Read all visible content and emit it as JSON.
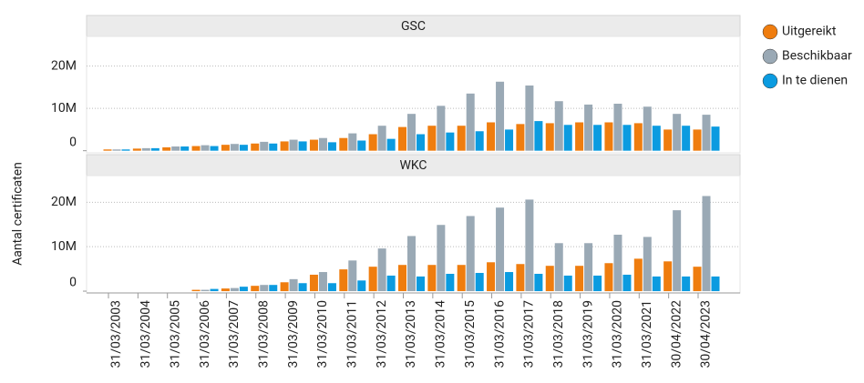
{
  "chart_data": {
    "type": "bar",
    "y_label": "Aantal certificaten",
    "categories": [
      "31/03/2003",
      "31/03/2004",
      "31/03/2005",
      "31/03/2006",
      "31/03/2007",
      "31/03/2008",
      "31/03/2009",
      "31/03/2010",
      "31/03/2011",
      "31/03/2012",
      "31/03/2013",
      "31/03/2014",
      "31/03/2015",
      "31/03/2016",
      "31/03/2017",
      "31/03/2018",
      "31/03/2019",
      "31/03/2020",
      "31/03/2021",
      "30/04/2022",
      "30/04/2023"
    ],
    "series": [
      {
        "name": "Uitgereikt",
        "color": "#ef7d0f"
      },
      {
        "name": "Beschikbaar",
        "color": "#9aa9b5"
      },
      {
        "name": "In te dienen",
        "color": "#0b9be0"
      }
    ],
    "facets": [
      {
        "title": "GSC",
        "ylim": [
          -500000,
          27000000
        ],
        "yticks": [
          0,
          {
            "value": 10000000,
            "label": "10M"
          },
          {
            "value": 20000000,
            "label": "20M"
          }
        ],
        "values": [
          [
            300000,
            500000,
            800000,
            1100000,
            1400000,
            1700000,
            2200000,
            2600000,
            3000000,
            3900000,
            5600000,
            5900000,
            5900000,
            6700000,
            6300000,
            6500000,
            6700000,
            6700000,
            6500000,
            5000000,
            5000000
          ],
          [
            300000,
            600000,
            1000000,
            1300000,
            1600000,
            2100000,
            2600000,
            3000000,
            4100000,
            5900000,
            8700000,
            10600000,
            13500000,
            16300000,
            15400000,
            11700000,
            10900000,
            11100000,
            10400000,
            8700000,
            8500000
          ],
          [
            300000,
            600000,
            1000000,
            1100000,
            1400000,
            1700000,
            2200000,
            2000000,
            2400000,
            2800000,
            3900000,
            4300000,
            4600000,
            5000000,
            7000000,
            6100000,
            6100000,
            6100000,
            5900000,
            5900000,
            5700000
          ]
        ]
      },
      {
        "title": "WKC",
        "ylim": [
          -400000,
          26000000
        ],
        "yticks": [
          0,
          {
            "value": 10000000,
            "label": "10M"
          },
          {
            "value": 20000000,
            "label": "20M"
          }
        ],
        "values": [
          [
            0,
            0,
            0,
            300000,
            600000,
            1200000,
            2000000,
            3700000,
            4900000,
            5500000,
            5900000,
            5900000,
            5900000,
            6500000,
            6100000,
            5700000,
            5700000,
            6300000,
            7300000,
            6700000,
            5500000
          ],
          [
            0,
            0,
            0,
            300000,
            700000,
            1400000,
            2700000,
            4300000,
            6900000,
            9600000,
            12400000,
            14900000,
            16900000,
            18800000,
            20600000,
            10800000,
            10800000,
            12700000,
            12200000,
            18200000,
            21400000
          ],
          [
            0,
            0,
            0,
            500000,
            1000000,
            1400000,
            1800000,
            1800000,
            2400000,
            3500000,
            3300000,
            3900000,
            4100000,
            4300000,
            3900000,
            3500000,
            3500000,
            3700000,
            3300000,
            3300000,
            3300000
          ]
        ]
      }
    ]
  }
}
